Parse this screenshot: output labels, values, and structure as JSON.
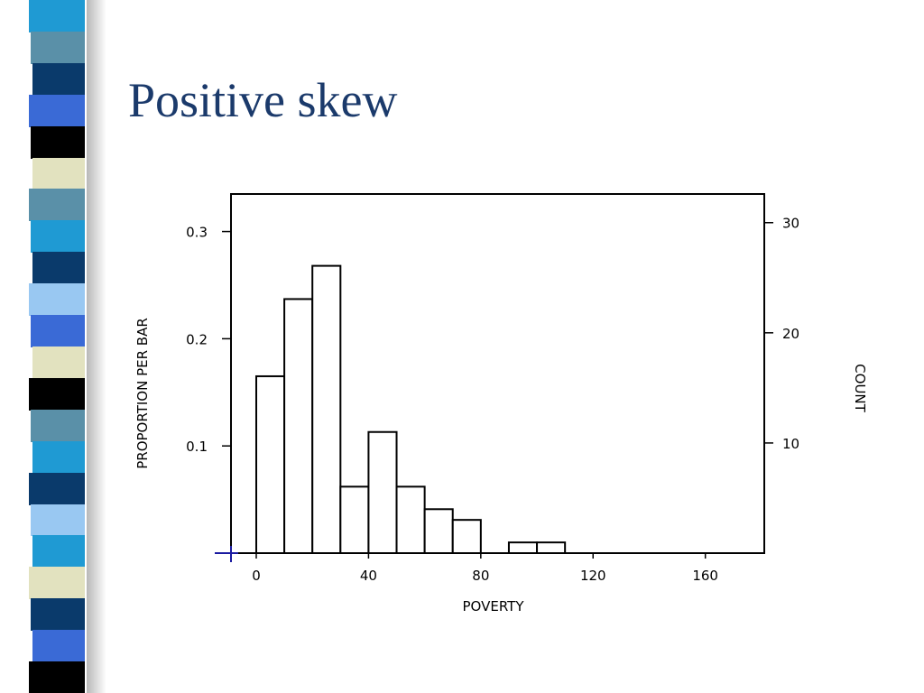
{
  "slide": {
    "title": "Positive skew",
    "title_color": "#1b3a6b",
    "strip_colors": [
      "#1f9ad3",
      "#5a90a8",
      "#0a3a6b",
      "#3a6ad6",
      "#000000",
      "#e2e2bf",
      "#5a90a8",
      "#1f9ad3",
      "#0a3a6b",
      "#99c8f2",
      "#3a6ad6",
      "#e2e2bf",
      "#000000",
      "#5a90a8",
      "#1f9ad3",
      "#0a3a6b",
      "#99c8f2",
      "#1f9ad3",
      "#e2e2bf",
      "#0a3a6b",
      "#3a6ad6",
      "#000000"
    ]
  },
  "chart_data": {
    "type": "bar",
    "title": "",
    "xlabel": "POVERTY",
    "ylabel": "PROPORTION PER BAR",
    "y2label": "COUNT",
    "bin_width": 10,
    "bins": [
      {
        "start": 0,
        "end": 10,
        "proportion": 0.165
      },
      {
        "start": 10,
        "end": 20,
        "proportion": 0.237
      },
      {
        "start": 20,
        "end": 30,
        "proportion": 0.268
      },
      {
        "start": 30,
        "end": 40,
        "proportion": 0.062
      },
      {
        "start": 40,
        "end": 50,
        "proportion": 0.113
      },
      {
        "start": 50,
        "end": 60,
        "proportion": 0.062
      },
      {
        "start": 60,
        "end": 70,
        "proportion": 0.041
      },
      {
        "start": 70,
        "end": 80,
        "proportion": 0.031
      },
      {
        "start": 80,
        "end": 90,
        "proportion": 0
      },
      {
        "start": 90,
        "end": 100,
        "proportion": 0.01
      },
      {
        "start": 100,
        "end": 110,
        "proportion": 0.01
      }
    ],
    "xlim": [
      -9,
      181
    ],
    "ylim": [
      0,
      0.335
    ],
    "y2lim": [
      0,
      32.6
    ],
    "x_ticks": [
      "0",
      "40",
      "80",
      "120",
      "160"
    ],
    "x_tick_values": [
      0,
      40,
      80,
      120,
      160
    ],
    "y_ticks": [
      "0.1",
      "0.2",
      "0.3"
    ],
    "y_tick_values": [
      0.1,
      0.2,
      0.3
    ],
    "y2_ticks": [
      "10",
      "20",
      "30"
    ],
    "y2_tick_values": [
      10,
      20,
      30
    ],
    "grid": false,
    "legend": "none"
  }
}
